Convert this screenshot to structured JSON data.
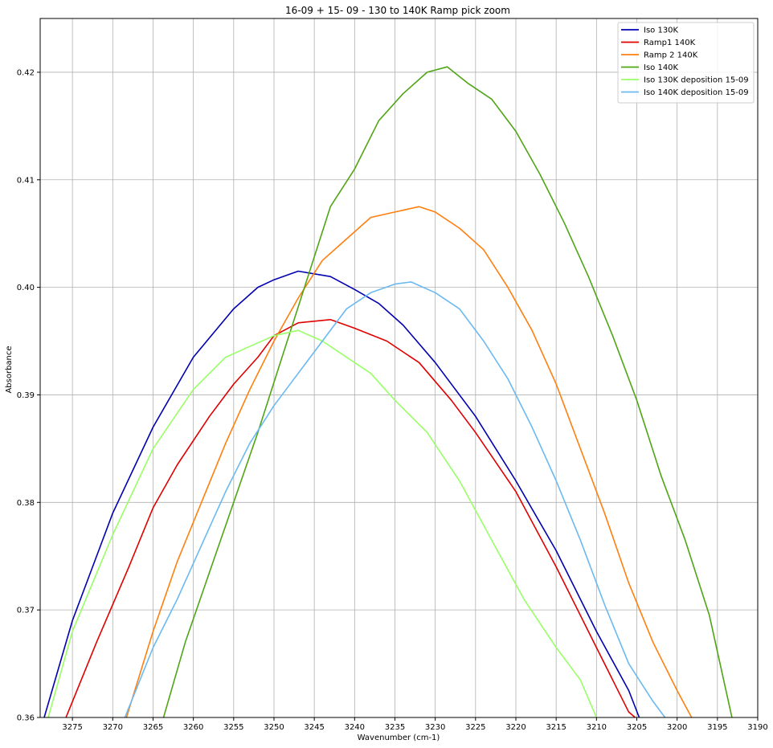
{
  "chart_data": {
    "type": "line",
    "title": "16-09 + 15- 09 - 130 to 140K Ramp pick zoom",
    "xlabel": "Wavenumber (cm-1)",
    "ylabel": "Absorbance",
    "xlim": [
      3279,
      3190
    ],
    "ylim": [
      0.36,
      0.425
    ],
    "x_ticks": [
      3275,
      3270,
      3265,
      3260,
      3255,
      3250,
      3245,
      3240,
      3235,
      3230,
      3225,
      3220,
      3215,
      3210,
      3205,
      3200,
      3195,
      3190
    ],
    "y_ticks": [
      0.36,
      0.37,
      0.38,
      0.39,
      0.4,
      0.41,
      0.42
    ],
    "y_tick_labels": [
      "0.36",
      "0.37",
      "0.38",
      "0.39",
      "0.40",
      "0.41",
      "0.42"
    ],
    "grid": true,
    "legend_position": "top-right",
    "series": [
      {
        "name": "Iso 130K",
        "color": "#0000b0",
        "x": [
          3278.5,
          3275,
          3270,
          3265,
          3260,
          3255,
          3252,
          3250,
          3247,
          3243,
          3240,
          3237,
          3234,
          3230,
          3225,
          3220,
          3215,
          3210,
          3206,
          3204.7
        ],
        "y": [
          0.36,
          0.369,
          0.379,
          0.387,
          0.3935,
          0.398,
          0.4,
          0.4007,
          0.4015,
          0.401,
          0.3998,
          0.3985,
          0.3965,
          0.393,
          0.388,
          0.382,
          0.3755,
          0.368,
          0.3625,
          0.36
        ]
      },
      {
        "name": "Ramp1 140K",
        "color": "#e00000",
        "x": [
          3275.8,
          3272,
          3268,
          3265,
          3262,
          3258,
          3255,
          3252,
          3250,
          3247,
          3243,
          3240,
          3236,
          3232,
          3228,
          3225,
          3220,
          3215,
          3210,
          3206,
          3205.2
        ],
        "y": [
          0.36,
          0.367,
          0.374,
          0.3795,
          0.3835,
          0.388,
          0.391,
          0.3935,
          0.3955,
          0.3967,
          0.397,
          0.3962,
          0.395,
          0.393,
          0.3895,
          0.3865,
          0.381,
          0.374,
          0.3665,
          0.3605,
          0.36
        ]
      },
      {
        "name": "Ramp 2 140K",
        "color": "#ff7f0e",
        "x": [
          3268.3,
          3265,
          3262,
          3259,
          3256,
          3253,
          3250,
          3247,
          3244,
          3241,
          3238,
          3235,
          3232,
          3230,
          3227,
          3224,
          3221,
          3218,
          3215,
          3212,
          3209,
          3206,
          3203,
          3200,
          3198.2
        ],
        "y": [
          0.36,
          0.368,
          0.3745,
          0.38,
          0.3855,
          0.3905,
          0.395,
          0.399,
          0.4025,
          0.4045,
          0.4065,
          0.407,
          0.4075,
          0.407,
          0.4055,
          0.4035,
          0.4,
          0.396,
          0.391,
          0.385,
          0.379,
          0.3725,
          0.367,
          0.3625,
          0.36
        ]
      },
      {
        "name": "Iso 140K",
        "color": "#4fa514",
        "x": [
          3263.7,
          3261,
          3258,
          3255,
          3252,
          3249,
          3246,
          3243,
          3240,
          3237,
          3234,
          3231,
          3228.5,
          3226,
          3223,
          3220,
          3217,
          3214,
          3211,
          3208,
          3205,
          3202,
          3199,
          3196,
          3193.2
        ],
        "y": [
          0.36,
          0.367,
          0.3735,
          0.38,
          0.3865,
          0.3935,
          0.4005,
          0.4075,
          0.411,
          0.4155,
          0.418,
          0.42,
          0.4205,
          0.419,
          0.4175,
          0.4145,
          0.4105,
          0.406,
          0.401,
          0.3955,
          0.3895,
          0.3825,
          0.3765,
          0.3695,
          0.36
        ]
      },
      {
        "name": "Iso 130K deposition 15-09",
        "color": "#99ff66",
        "x": [
          3278,
          3275,
          3270,
          3265,
          3260,
          3256,
          3253,
          3250,
          3247,
          3244,
          3241,
          3238,
          3235,
          3231,
          3227,
          3223,
          3219,
          3215,
          3212,
          3210
        ],
        "y": [
          0.36,
          0.368,
          0.377,
          0.385,
          0.3905,
          0.3935,
          0.3945,
          0.3955,
          0.396,
          0.395,
          0.3935,
          0.392,
          0.3895,
          0.3865,
          0.382,
          0.3765,
          0.371,
          0.3665,
          0.3635,
          0.36
        ]
      },
      {
        "name": "Iso 140K deposition 15-09",
        "color": "#6ab9f2",
        "x": [
          3268.5,
          3265,
          3262,
          3259,
          3256,
          3253,
          3250,
          3247,
          3244,
          3241,
          3238,
          3235,
          3233,
          3230,
          3227,
          3224,
          3221,
          3218,
          3215,
          3212,
          3209,
          3206,
          3203,
          3201.5
        ],
        "y": [
          0.36,
          0.3665,
          0.371,
          0.376,
          0.381,
          0.3855,
          0.389,
          0.392,
          0.395,
          0.398,
          0.3995,
          0.4003,
          0.4005,
          0.3995,
          0.398,
          0.395,
          0.3915,
          0.387,
          0.382,
          0.3765,
          0.3705,
          0.365,
          0.3615,
          0.36
        ]
      }
    ]
  }
}
